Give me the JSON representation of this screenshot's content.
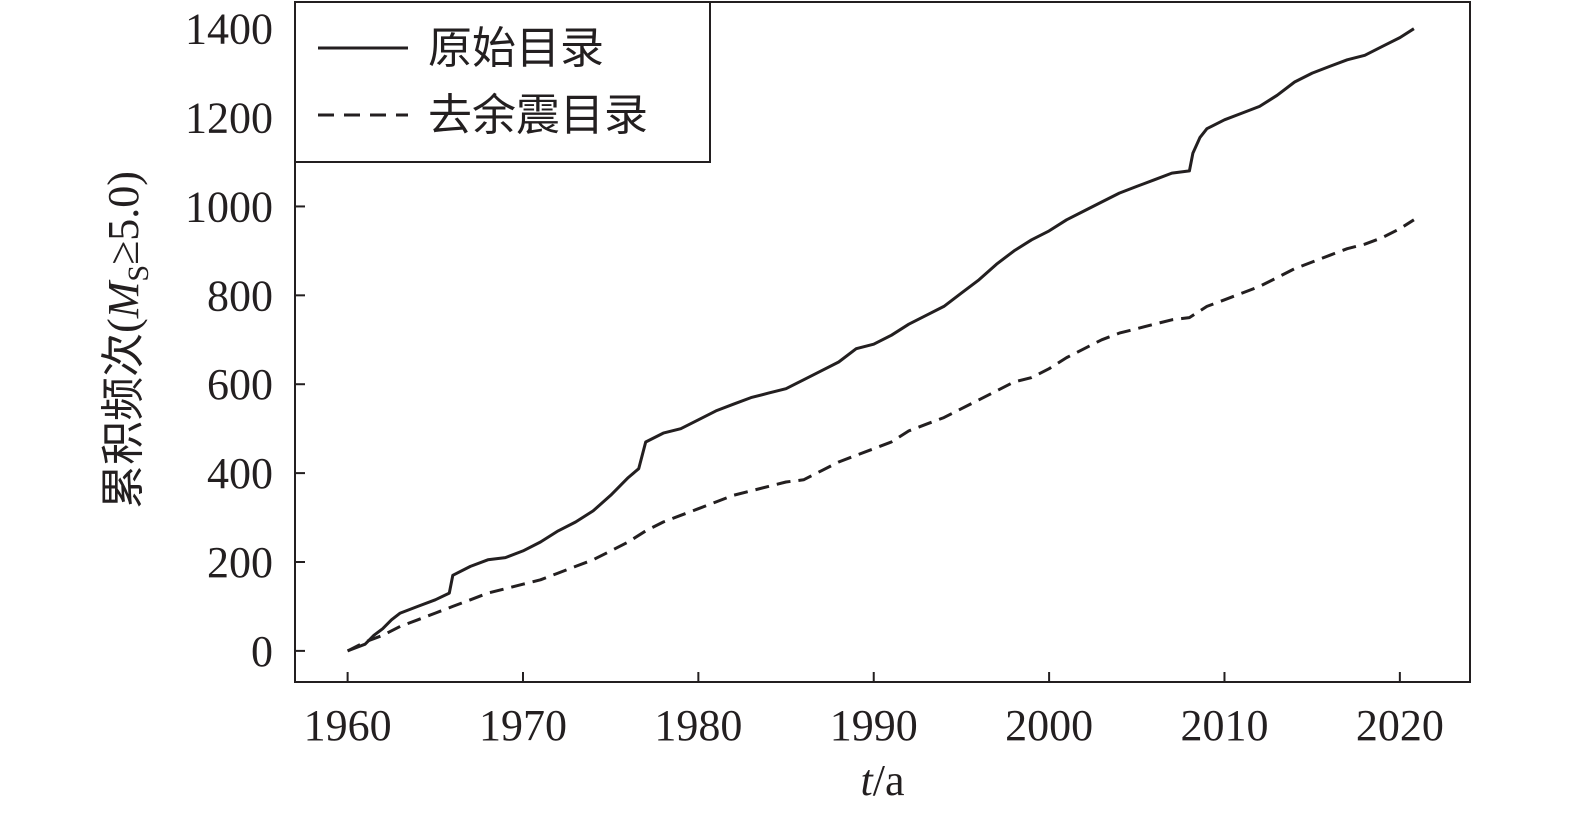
{
  "chart_data": {
    "type": "line",
    "xlabel": {
      "var": "t",
      "sep": "/",
      "unit": "a"
    },
    "ylabel": {
      "prefix": "累积频次(",
      "var": "M",
      "sub": "S",
      "suffix": "≥5.0)"
    },
    "xlim": [
      1957,
      2024
    ],
    "ylim": [
      -70,
      1460
    ],
    "xticks": [
      1960,
      1970,
      1980,
      1990,
      2000,
      2010,
      2020
    ],
    "yticks": [
      0,
      200,
      400,
      600,
      800,
      1000,
      1200,
      1400
    ],
    "grid": false,
    "legend_position": "top-left",
    "series": [
      {
        "name": "原始目录",
        "style": "solid",
        "color": "#231f20",
        "x": [
          1960,
          1961,
          1961.5,
          1962,
          1962.5,
          1963,
          1964,
          1965,
          1965.8,
          1966,
          1967,
          1968,
          1969,
          1970,
          1971,
          1972,
          1973,
          1974,
          1975,
          1976,
          1976.6,
          1977,
          1978,
          1979,
          1980,
          1981,
          1982,
          1983,
          1984,
          1985,
          1986,
          1987,
          1988,
          1989,
          1990,
          1991,
          1992,
          1993,
          1994,
          1995,
          1996,
          1997,
          1998,
          1999,
          2000,
          2001,
          2002,
          2003,
          2004,
          2005,
          2006,
          2007,
          2008,
          2008.2,
          2008.6,
          2009,
          2010,
          2011,
          2012,
          2013,
          2014,
          2015,
          2016,
          2017,
          2018,
          2019,
          2020,
          2020.8
        ],
        "y": [
          0,
          15,
          35,
          50,
          70,
          85,
          100,
          115,
          130,
          170,
          190,
          205,
          210,
          225,
          245,
          270,
          290,
          315,
          350,
          390,
          410,
          470,
          490,
          500,
          520,
          540,
          555,
          570,
          580,
          590,
          610,
          630,
          650,
          680,
          690,
          710,
          735,
          755,
          775,
          805,
          835,
          870,
          900,
          925,
          945,
          970,
          990,
          1010,
          1030,
          1045,
          1060,
          1075,
          1080,
          1120,
          1155,
          1175,
          1195,
          1210,
          1225,
          1250,
          1280,
          1300,
          1315,
          1330,
          1340,
          1360,
          1380,
          1400
        ]
      },
      {
        "name": "去余震目录",
        "style": "dashed",
        "color": "#231f20",
        "x": [
          1960,
          1961,
          1962,
          1963,
          1964,
          1965,
          1966,
          1967,
          1968,
          1969,
          1970,
          1971,
          1972,
          1973,
          1974,
          1975,
          1976,
          1977,
          1978,
          1979,
          1980,
          1981,
          1982,
          1983,
          1984,
          1985,
          1986,
          1987,
          1988,
          1989,
          1990,
          1991,
          1992,
          1993,
          1994,
          1995,
          1996,
          1997,
          1998,
          1999,
          2000,
          2001,
          2002,
          2003,
          2004,
          2005,
          2006,
          2007,
          2008,
          2009,
          2010,
          2011,
          2012,
          2013,
          2014,
          2015,
          2016,
          2017,
          2018,
          2019,
          2020,
          2020.8
        ],
        "y": [
          0,
          20,
          35,
          55,
          70,
          85,
          100,
          115,
          130,
          140,
          150,
          160,
          175,
          190,
          205,
          225,
          245,
          270,
          290,
          305,
          320,
          335,
          350,
          360,
          370,
          380,
          385,
          405,
          425,
          440,
          455,
          470,
          495,
          510,
          525,
          545,
          565,
          585,
          605,
          615,
          635,
          660,
          680,
          700,
          715,
          725,
          735,
          745,
          750,
          775,
          790,
          805,
          820,
          840,
          860,
          875,
          890,
          905,
          915,
          930,
          950,
          970
        ]
      }
    ]
  }
}
